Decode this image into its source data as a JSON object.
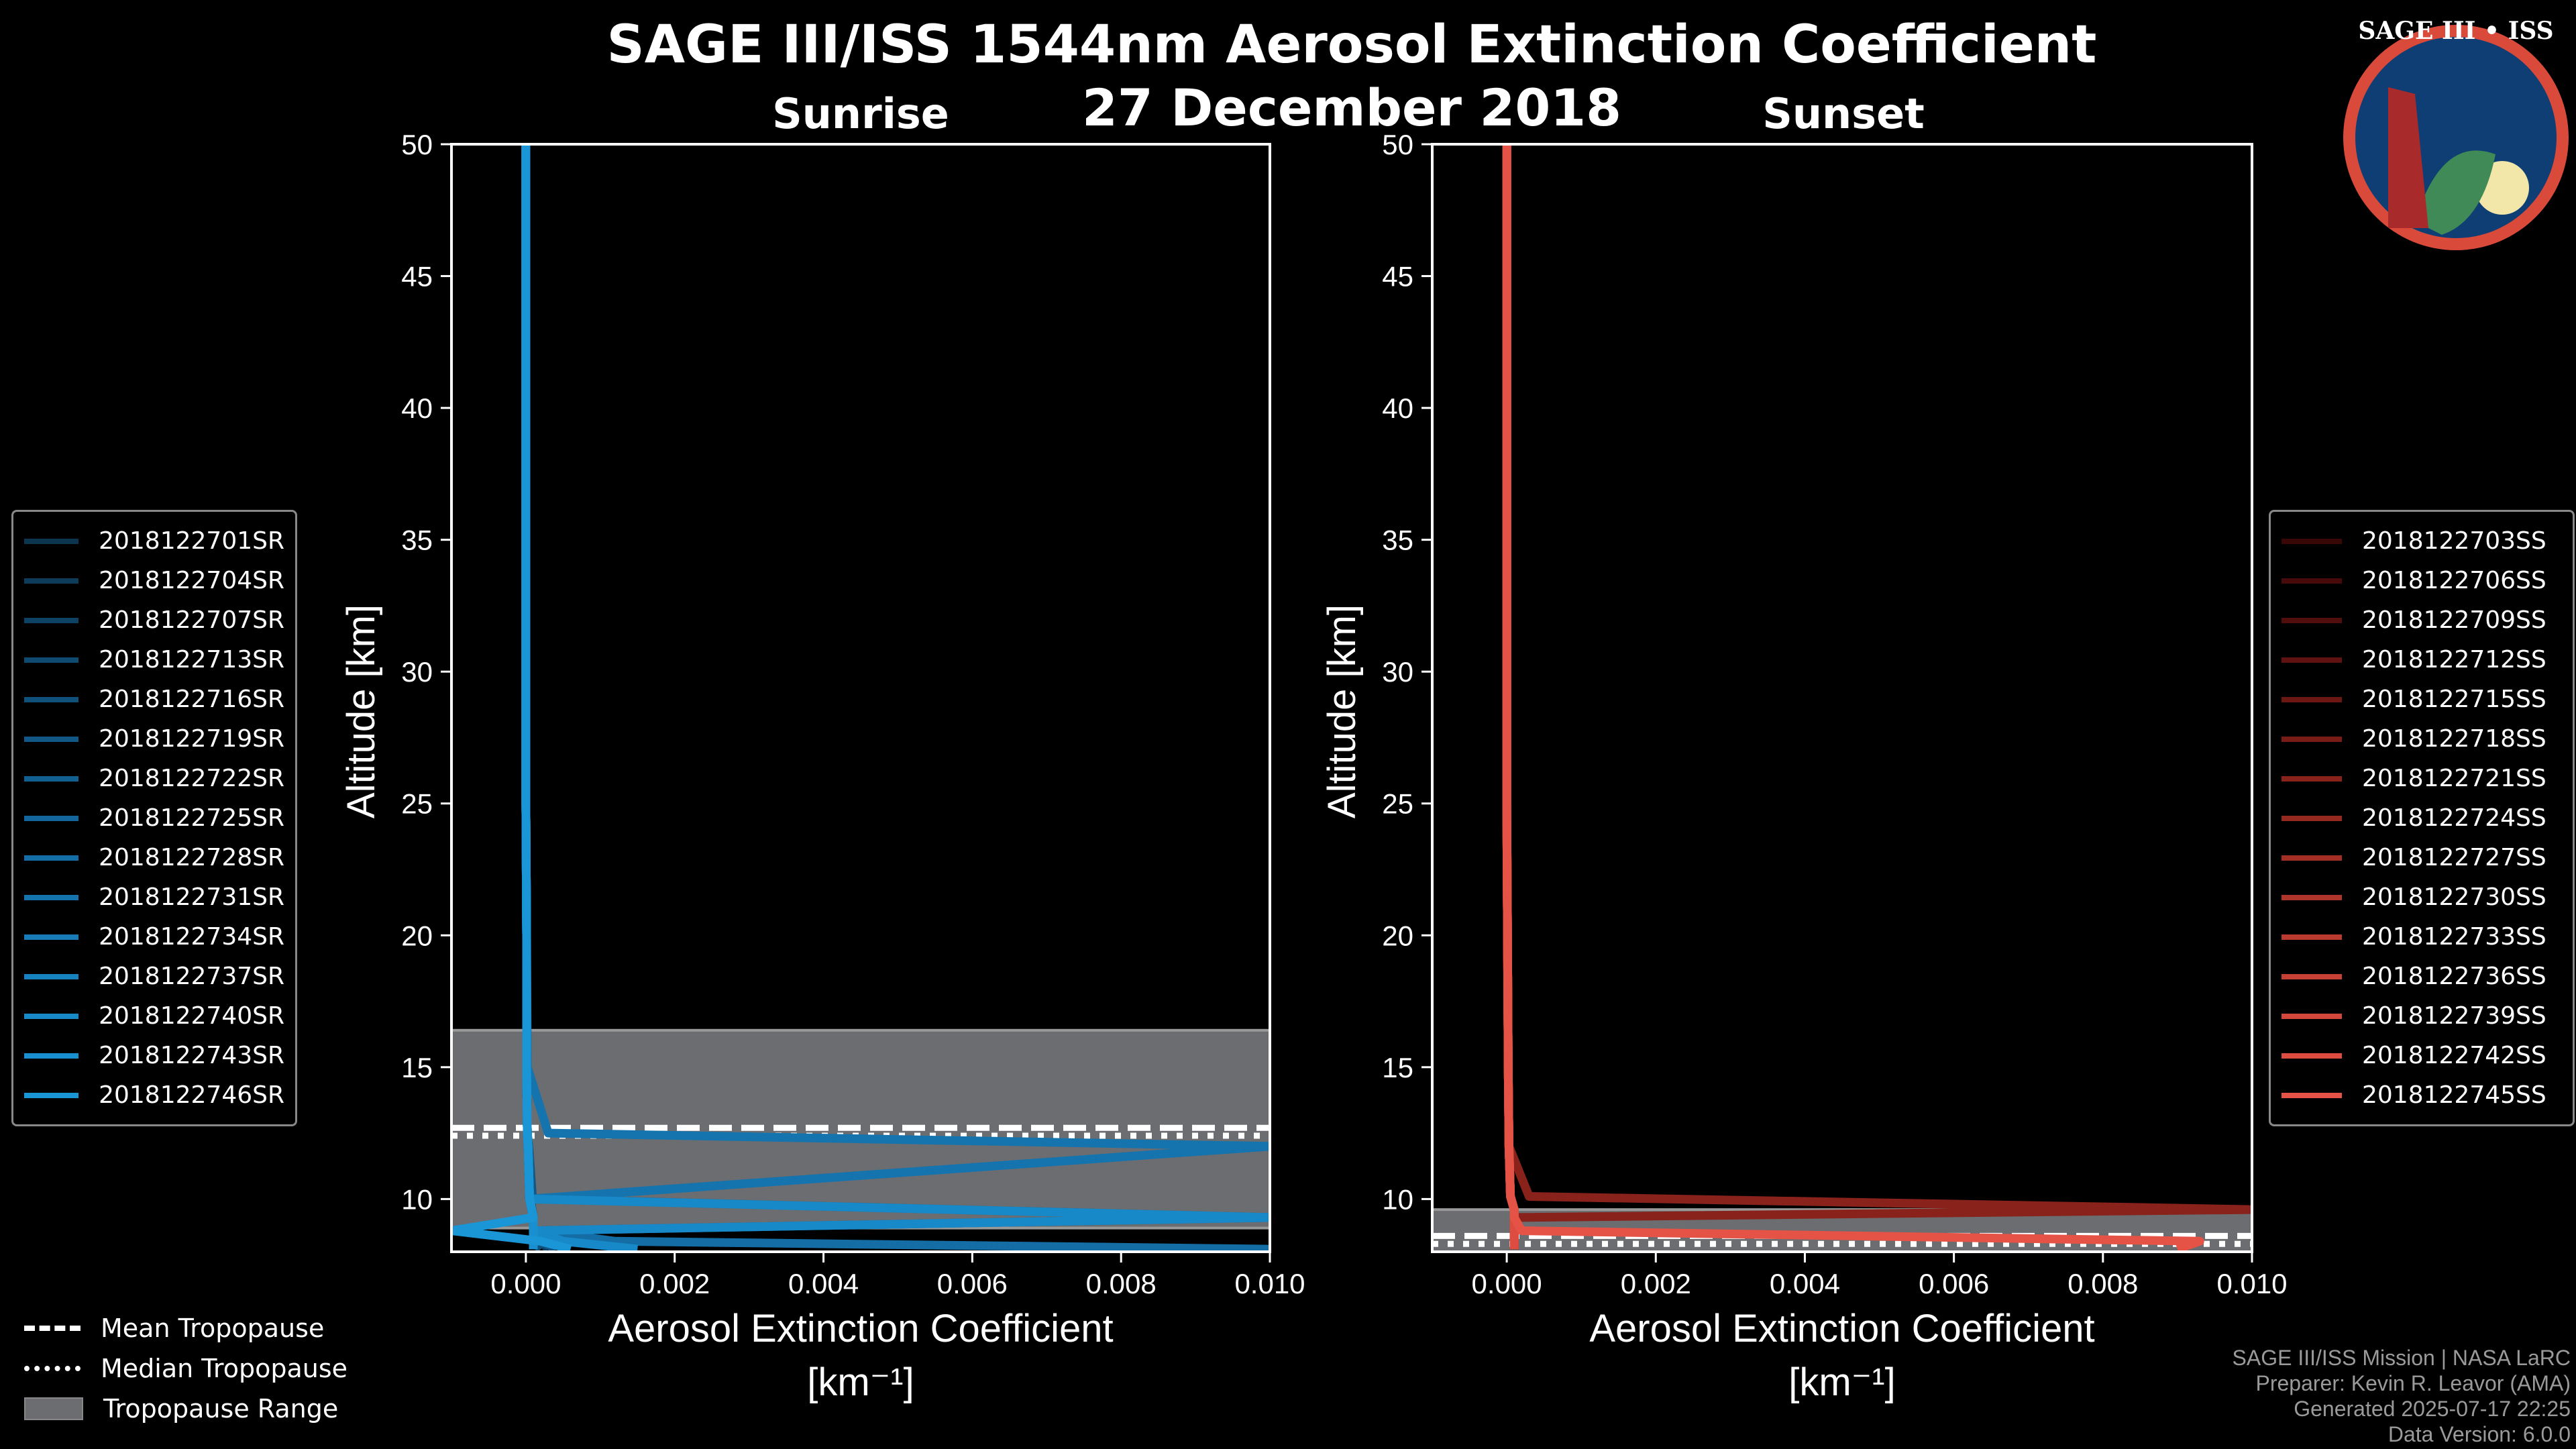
{
  "title_line1": "SAGE III/ISS 1544nm Aerosol Extinction Coefficient",
  "title_line2": "27 December 2018",
  "logo_text": "SAGE III • ISS",
  "colors": {
    "band": "#6b6d70",
    "text": "#ffffff",
    "footer": "#9a9a9a"
  },
  "tropopause_legend": [
    {
      "label": "Mean Tropopause",
      "style": "dashed"
    },
    {
      "label": "Median Tropopause",
      "style": "dotted"
    },
    {
      "label": "Tropopause Range",
      "style": "band"
    }
  ],
  "footer": [
    "SAGE III/ISS Mission | NASA LaRC",
    "Preparer: Kevin R. Leavor (AMA)",
    "Generated 2025-07-17 22:25",
    "Data Version: 6.0.0"
  ],
  "chart_data": [
    {
      "type": "line",
      "title": "Sunrise",
      "xlabel": "Aerosol Extinction Coefficient",
      "xlabel_units": "[km⁻¹]",
      "ylabel": "Altitude [km]",
      "xlim": [
        -0.001,
        0.01
      ],
      "ylim": [
        8,
        50
      ],
      "xticks": [
        "0.000",
        "0.002",
        "0.004",
        "0.006",
        "0.008",
        "0.010"
      ],
      "yticks": [
        "10",
        "15",
        "20",
        "25",
        "30",
        "35",
        "40",
        "45",
        "50"
      ],
      "tropopause": {
        "mean": 12.7,
        "median": 12.4,
        "range": [
          8.9,
          16.4
        ]
      },
      "legend_position": "left",
      "altitudes": [
        8.1,
        8.4,
        8.8,
        9.3,
        10,
        12,
        12.5,
        15,
        20,
        25,
        30,
        40,
        50
      ],
      "series": [
        {
          "name": "2018122701SR",
          "color": "#0c3550",
          "values": [
            0.0001,
            0.0001,
            0.0001,
            0.0001,
            5e-05,
            3e-05,
            2e-05,
            1e-05,
            1e-05,
            0,
            0,
            0,
            0
          ]
        },
        {
          "name": "2018122704SR",
          "color": "#0d3b5a",
          "values": [
            0.0002,
            0.0001,
            0.0001,
            0.0001,
            5e-05,
            3e-05,
            2e-05,
            1e-05,
            1e-05,
            0,
            0,
            0,
            0
          ]
        },
        {
          "name": "2018122707SR",
          "color": "#0e4265",
          "values": [
            0.0003,
            0.0002,
            0.0001,
            0.0001,
            6e-05,
            3e-05,
            2e-05,
            1e-05,
            1e-05,
            0,
            0,
            0,
            0
          ]
        },
        {
          "name": "2018122713SR",
          "color": "#0f4a70",
          "values": [
            0.0001,
            0.0001,
            0.0001,
            0.0001,
            5e-05,
            3e-05,
            2e-05,
            1e-05,
            1e-05,
            0,
            0,
            0,
            0
          ]
        },
        {
          "name": "2018122716SR",
          "color": "#10517b",
          "values": [
            0.0002,
            0.0001,
            0.0001,
            0.0001,
            5e-05,
            3e-05,
            2e-05,
            1e-05,
            1e-05,
            0,
            0,
            0,
            0
          ]
        },
        {
          "name": "2018122719SR",
          "color": "#115886",
          "values": [
            0.0004,
            0.0002,
            0.0001,
            0.01,
            9e-05,
            4e-05,
            2e-05,
            1e-05,
            1e-05,
            0,
            0,
            0,
            0
          ]
        },
        {
          "name": "2018122722SR",
          "color": "#125f91",
          "values": [
            0.0001,
            0.0001,
            0.0001,
            0.0001,
            5e-05,
            3e-05,
            2e-05,
            1e-05,
            1e-05,
            0,
            0,
            0,
            0
          ]
        },
        {
          "name": "2018122725SR",
          "color": "#13669b",
          "values": [
            0.0001,
            0.0001,
            0.0001,
            0.0001,
            5e-05,
            3e-05,
            2e-05,
            1e-05,
            1e-05,
            0,
            0,
            0,
            0
          ]
        },
        {
          "name": "2018122728SR",
          "color": "#146da5",
          "values": [
            0.01,
            0.0012,
            0.0001,
            0.0001,
            5e-05,
            3e-05,
            2e-05,
            1e-05,
            1e-05,
            0,
            0,
            0,
            0
          ]
        },
        {
          "name": "2018122731SR",
          "color": "#1574ae",
          "values": [
            0.0001,
            0.0001,
            0.0001,
            0.0001,
            5e-05,
            0.01,
            0.0003,
            2e-05,
            1e-05,
            0,
            0,
            0,
            0
          ]
        },
        {
          "name": "2018122734SR",
          "color": "#167bb7",
          "values": [
            0.0001,
            0.0001,
            0.0001,
            0.0001,
            5e-05,
            3e-05,
            2e-05,
            1e-05,
            1e-05,
            0,
            0,
            0,
            0
          ]
        },
        {
          "name": "2018122737SR",
          "color": "#1782c0",
          "values": [
            0.0001,
            0.0001,
            0.0001,
            0.0001,
            5e-05,
            3e-05,
            2e-05,
            1e-05,
            1e-05,
            0,
            0,
            0,
            0
          ]
        },
        {
          "name": "2018122740SR",
          "color": "#1889c8",
          "values": [
            0.0015,
            0.0005,
            0.0001,
            0.01,
            5e-05,
            3e-05,
            2e-05,
            1e-05,
            1e-05,
            0,
            0,
            0,
            0
          ]
        },
        {
          "name": "2018122743SR",
          "color": "#198fcf",
          "values": [
            0.0001,
            0.0001,
            0.0001,
            0.0001,
            5e-05,
            3e-05,
            2e-05,
            1e-05,
            1e-05,
            0,
            0,
            0,
            0
          ]
        },
        {
          "name": "2018122746SR",
          "color": "#1a95d6",
          "values": [
            0.0006,
            0.0002,
            -0.001,
            0.0001,
            5e-05,
            3e-05,
            2e-05,
            1e-05,
            1e-05,
            0,
            0,
            0,
            0
          ]
        }
      ]
    },
    {
      "type": "line",
      "title": "Sunset",
      "xlabel": "Aerosol Extinction Coefficient",
      "xlabel_units": "[km⁻¹]",
      "ylabel": "Altitude [km]",
      "xlim": [
        -0.001,
        0.01
      ],
      "ylim": [
        8,
        50
      ],
      "xticks": [
        "0.000",
        "0.002",
        "0.004",
        "0.006",
        "0.008",
        "0.010"
      ],
      "yticks": [
        "10",
        "15",
        "20",
        "25",
        "30",
        "35",
        "40",
        "45",
        "50"
      ],
      "tropopause": {
        "mean": 8.6,
        "median": 8.3,
        "range": [
          8.0,
          9.6
        ]
      },
      "legend_position": "right",
      "altitudes": [
        8.1,
        8.4,
        8.8,
        9.3,
        9.6,
        10.1,
        12,
        15,
        20,
        25,
        30,
        40,
        50
      ],
      "series": [
        {
          "name": "2018122703SS",
          "color": "#3a0707",
          "values": [
            0.0001,
            0.0001,
            0.0001,
            0.0001,
            0.0001,
            5e-05,
            3e-05,
            2e-05,
            1e-05,
            0,
            0,
            0,
            0
          ]
        },
        {
          "name": "2018122706SS",
          "color": "#450a09",
          "values": [
            0.0001,
            0.0001,
            0.0001,
            0.0001,
            0.0001,
            5e-05,
            3e-05,
            2e-05,
            1e-05,
            0,
            0,
            0,
            0
          ]
        },
        {
          "name": "2018122709SS",
          "color": "#520e0c",
          "values": [
            0.0001,
            0.0001,
            0.0001,
            0.0001,
            0.0001,
            5e-05,
            3e-05,
            2e-05,
            1e-05,
            0,
            0,
            0,
            0
          ]
        },
        {
          "name": "2018122712SS",
          "color": "#5f120f",
          "values": [
            0.0001,
            0.0001,
            0.0001,
            0.0001,
            0.0001,
            5e-05,
            3e-05,
            2e-05,
            1e-05,
            0,
            0,
            0,
            0
          ]
        },
        {
          "name": "2018122715SS",
          "color": "#6c1712",
          "values": [
            0.0001,
            0.0001,
            0.0001,
            0.0001,
            0.0001,
            5e-05,
            3e-05,
            2e-05,
            1e-05,
            0,
            0,
            0,
            0
          ]
        },
        {
          "name": "2018122718SS",
          "color": "#7a1c16",
          "values": [
            0.0001,
            0.0001,
            0.0001,
            0.0001,
            0.0001,
            5e-05,
            3e-05,
            2e-05,
            1e-05,
            0,
            0,
            0,
            0
          ]
        },
        {
          "name": "2018122721SS",
          "color": "#88221a",
          "values": [
            0.0001,
            0.0001,
            0.0001,
            0.0001,
            0.01,
            0.0003,
            3e-05,
            2e-05,
            1e-05,
            0,
            0,
            0,
            0
          ]
        },
        {
          "name": "2018122724SS",
          "color": "#95281f",
          "values": [
            0.0001,
            0.0001,
            0.0001,
            0.0001,
            0.0001,
            5e-05,
            3e-05,
            2e-05,
            1e-05,
            0,
            0,
            0,
            0
          ]
        },
        {
          "name": "2018122727SS",
          "color": "#a22e24",
          "values": [
            0.0001,
            0.0001,
            0.0001,
            0.0001,
            0.0001,
            5e-05,
            3e-05,
            2e-05,
            1e-05,
            0,
            0,
            0,
            0
          ]
        },
        {
          "name": "2018122730SS",
          "color": "#af3429",
          "values": [
            0.0001,
            0.0001,
            0.0001,
            0.0001,
            0.0001,
            5e-05,
            3e-05,
            2e-05,
            1e-05,
            0,
            0,
            0,
            0
          ]
        },
        {
          "name": "2018122733SS",
          "color": "#bb3a2f",
          "values": [
            0.0001,
            0.0001,
            0.0001,
            0.0001,
            0.0001,
            5e-05,
            3e-05,
            2e-05,
            1e-05,
            0,
            0,
            0,
            0
          ]
        },
        {
          "name": "2018122736SS",
          "color": "#c74035",
          "values": [
            0.0001,
            0.0001,
            0.0001,
            0.0001,
            0.0001,
            5e-05,
            3e-05,
            2e-05,
            1e-05,
            0,
            0,
            0,
            0
          ]
        },
        {
          "name": "2018122739SS",
          "color": "#d2463b",
          "values": [
            0.0001,
            0.0001,
            0.0001,
            0.0001,
            0.0001,
            5e-05,
            3e-05,
            2e-05,
            1e-05,
            0,
            0,
            0,
            0
          ]
        },
        {
          "name": "2018122742SS",
          "color": "#dc4c41",
          "values": [
            0.0001,
            0.0001,
            0.0001,
            0.0001,
            0.0001,
            5e-05,
            3e-05,
            2e-05,
            1e-05,
            0,
            0,
            0,
            0
          ]
        },
        {
          "name": "2018122745SS",
          "color": "#e55347",
          "values": [
            0.009,
            0.0093,
            0.0002,
            0.0001,
            0.0001,
            5e-05,
            3e-05,
            2e-05,
            1e-05,
            0,
            0,
            0,
            0
          ]
        }
      ]
    }
  ]
}
